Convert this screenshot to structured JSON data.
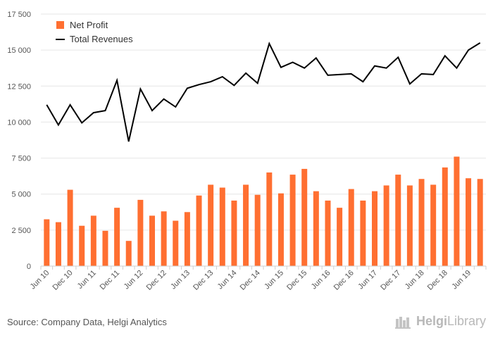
{
  "source": "Source: Company Data, Helgi Analytics",
  "brand": {
    "name_bold": "Helgi",
    "name_rest": "Library",
    "logo_icon": "bookshelf-icon"
  },
  "colors": {
    "bar": "#ff6f31",
    "line": "#000000"
  },
  "chart_data": {
    "type": "bar",
    "ylim": [
      0,
      17500
    ],
    "yticks": [
      0,
      2500,
      5000,
      7500,
      10000,
      12500,
      15000,
      17500
    ],
    "ytick_labels": [
      "0",
      "2 500",
      "5 000",
      "7 500",
      "10 000",
      "12 500",
      "15 000",
      "17 500"
    ],
    "xtick_labels": [
      "Jun 10",
      "Dec 10",
      "Jun 11",
      "Dec 11",
      "Jun 12",
      "Dec 12",
      "Jun 13",
      "Dec 13",
      "Jun 14",
      "Dec 14",
      "Jun 15",
      "Dec 15",
      "Jun 16",
      "Dec 16",
      "Jun 17",
      "Dec 17",
      "Jun 18",
      "Dec 18",
      "Jun 19"
    ],
    "categories": [
      "Jun 10",
      "Sep 10",
      "Dec 10",
      "Mar 11",
      "Jun 11",
      "Sep 11",
      "Dec 11",
      "Mar 12",
      "Jun 12",
      "Sep 12",
      "Dec 12",
      "Mar 13",
      "Jun 13",
      "Sep 13",
      "Dec 13",
      "Mar 14",
      "Jun 14",
      "Sep 14",
      "Dec 14",
      "Mar 15",
      "Jun 15",
      "Sep 15",
      "Dec 15",
      "Mar 16",
      "Jun 16",
      "Sep 16",
      "Dec 16",
      "Mar 17",
      "Jun 17",
      "Sep 17",
      "Dec 17",
      "Mar 18",
      "Jun 18",
      "Sep 18",
      "Dec 18",
      "Mar 19",
      "Jun 19",
      "Sep 19"
    ],
    "series": [
      {
        "name": "Net Profit",
        "type": "bar",
        "values": [
          3250,
          3050,
          5300,
          2800,
          3500,
          2450,
          4050,
          1750,
          4600,
          3500,
          3800,
          3150,
          3750,
          4900,
          5650,
          5450,
          4550,
          5650,
          4950,
          6500,
          5050,
          6350,
          6750,
          5200,
          4550,
          4050,
          5350,
          4550,
          5200,
          5600,
          6350,
          5600,
          6050,
          5650,
          6850,
          7600,
          6100,
          6050
        ]
      },
      {
        "name": "Total Revenues",
        "type": "line",
        "values": [
          11200,
          9800,
          11200,
          9950,
          10650,
          10800,
          12900,
          8650,
          12300,
          10800,
          11600,
          11050,
          12350,
          12600,
          12800,
          13150,
          12550,
          13400,
          12700,
          15450,
          13800,
          14150,
          13750,
          14450,
          13250,
          13300,
          13350,
          12800,
          13900,
          13750,
          14500,
          12650,
          13350,
          13300,
          14600,
          13750,
          15000,
          15500
        ]
      }
    ],
    "legend_position": "top-left",
    "grid": true
  }
}
